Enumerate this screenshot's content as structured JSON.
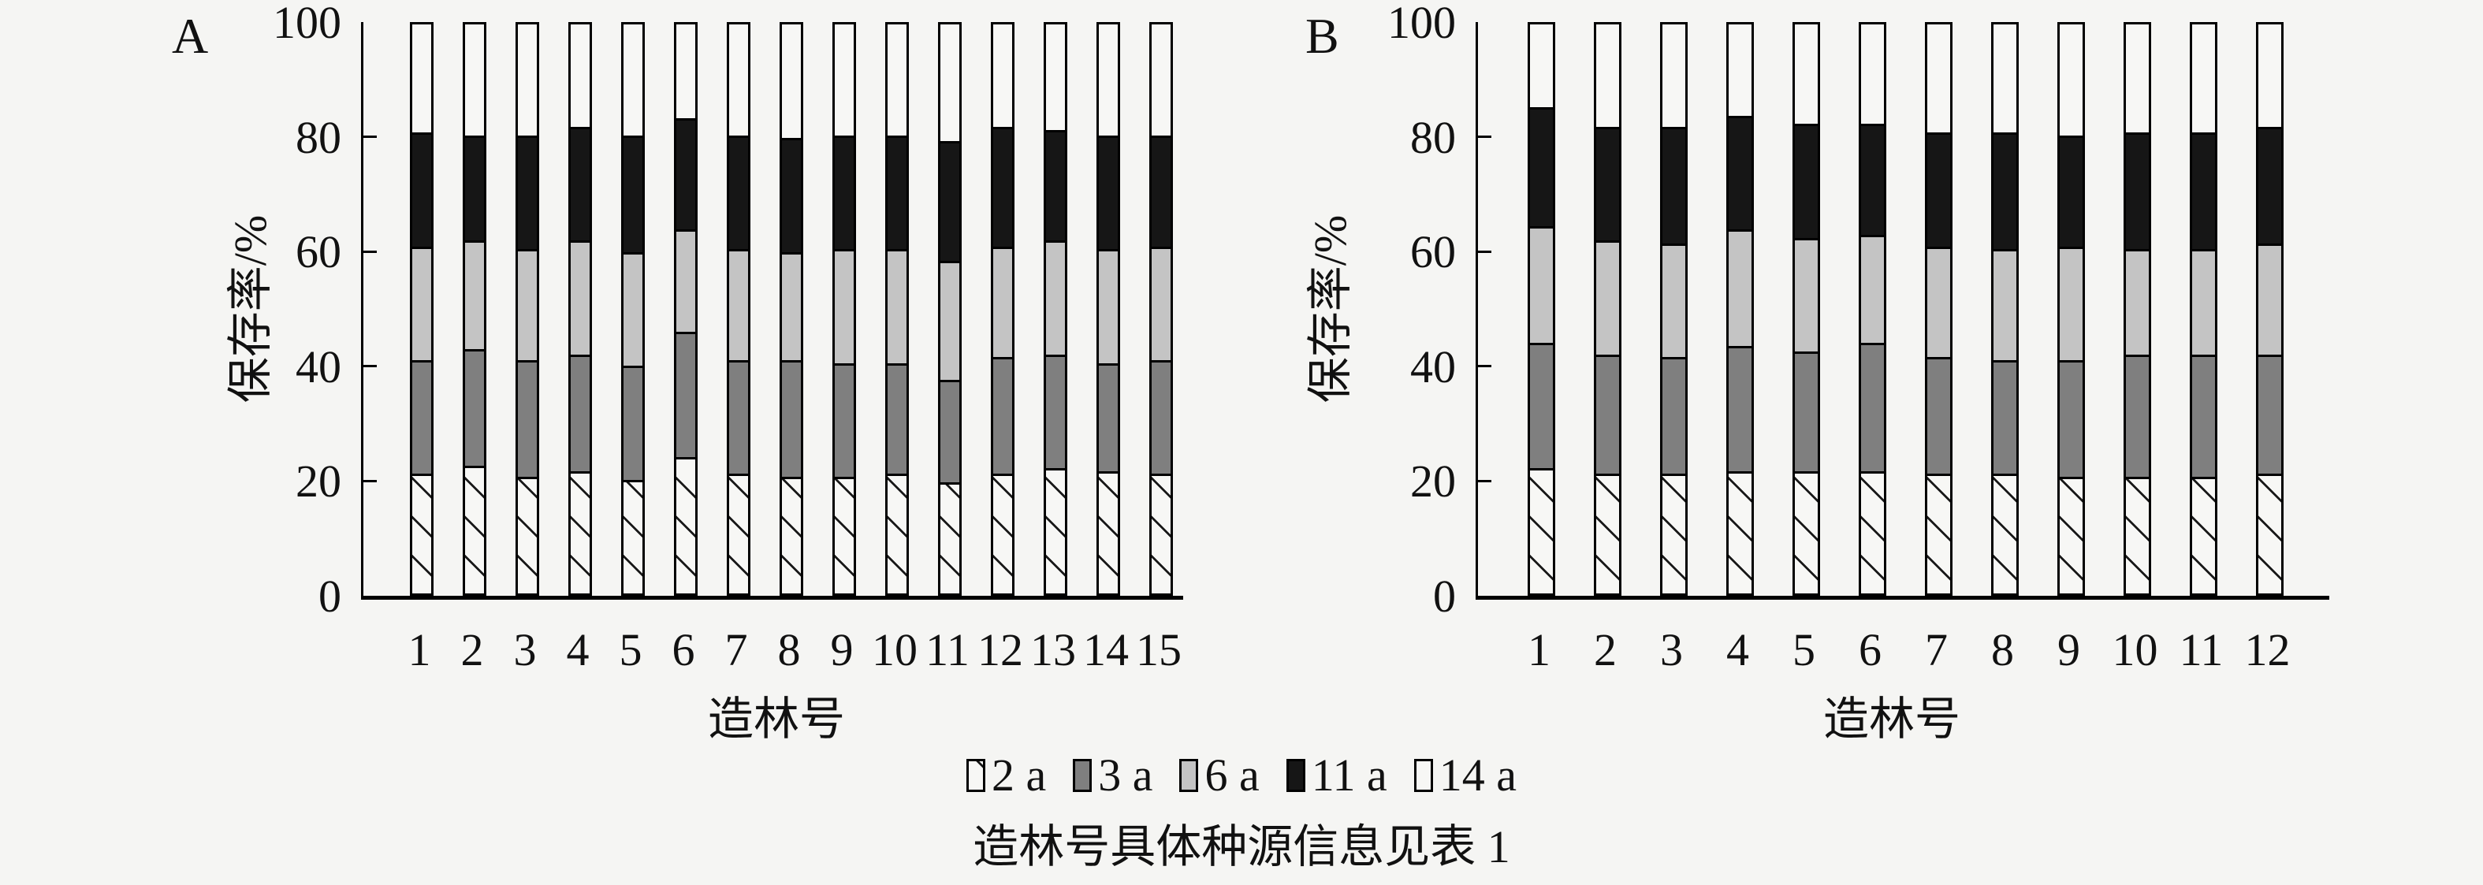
{
  "figure": {
    "background": "#f5f5f3",
    "caption": "造林号具体种源信息见表 1"
  },
  "legend": {
    "items": [
      {
        "label": "2 a",
        "key": "a2",
        "style": "hatch",
        "fill": "#f7f7f5",
        "hatch_color": "#191919"
      },
      {
        "label": "3 a",
        "key": "a3",
        "style": "solid",
        "fill": "#7f7f7f"
      },
      {
        "label": "6 a",
        "key": "a6",
        "style": "solid",
        "fill": "#c4c4c4"
      },
      {
        "label": "11 a",
        "key": "a11",
        "style": "solid",
        "fill": "#161616"
      },
      {
        "label": "14 a",
        "key": "a14",
        "style": "solid",
        "fill": "#f7f7f5"
      }
    ]
  },
  "chart_data": [
    {
      "type": "bar",
      "stacked": true,
      "panel_label": "A",
      "xlabel": "造林号",
      "ylabel": "保存率/%",
      "ylim": [
        0,
        100
      ],
      "yticks": [
        0,
        20,
        40,
        60,
        80,
        100
      ],
      "grid": false,
      "legend_position": "bottom-center-shared",
      "categories": [
        "1",
        "2",
        "3",
        "4",
        "5",
        "6",
        "7",
        "8",
        "9",
        "10",
        "11",
        "12",
        "13",
        "14",
        "15"
      ],
      "series": [
        {
          "name": "2 a",
          "values": [
            21,
            22.5,
            20.5,
            21.5,
            20,
            24,
            21,
            20.5,
            20.5,
            21,
            19.5,
            21,
            22,
            21.5,
            21
          ]
        },
        {
          "name": "3 a",
          "values": [
            20,
            20.5,
            20.5,
            20.5,
            20,
            22,
            20,
            20.5,
            20,
            19.5,
            18,
            20.5,
            20,
            19,
            20
          ]
        },
        {
          "name": "6 a",
          "values": [
            20,
            19,
            19.5,
            20,
            20,
            18,
            19.5,
            19,
            20,
            20,
            21,
            19.5,
            20,
            20,
            20
          ]
        },
        {
          "name": "11 a",
          "values": [
            20,
            18.5,
            20,
            20,
            20.5,
            19.5,
            20,
            20,
            20,
            20,
            21,
            21,
            19.5,
            20,
            19.5
          ]
        },
        {
          "name": "14 a",
          "values": [
            19,
            19.5,
            19.5,
            18,
            19.5,
            16.5,
            19.5,
            20,
            19.5,
            19.5,
            20.5,
            18,
            18.5,
            19.5,
            19.5
          ]
        }
      ]
    },
    {
      "type": "bar",
      "stacked": true,
      "panel_label": "B",
      "xlabel": "造林号",
      "ylabel": "保存率/%",
      "ylim": [
        0,
        100
      ],
      "yticks": [
        0,
        20,
        40,
        60,
        80,
        100
      ],
      "grid": false,
      "legend_position": "bottom-center-shared",
      "categories": [
        "1",
        "2",
        "3",
        "4",
        "5",
        "6",
        "7",
        "8",
        "9",
        "10",
        "11",
        "12"
      ],
      "series": [
        {
          "name": "2 a",
          "values": [
            22,
            21,
            21,
            21.5,
            21.5,
            21.5,
            21,
            21,
            20.5,
            20.5,
            20.5,
            21
          ]
        },
        {
          "name": "3 a",
          "values": [
            22,
            21,
            20.5,
            22,
            21,
            22.5,
            20.5,
            20,
            20.5,
            21.5,
            21.5,
            21
          ]
        },
        {
          "name": "6 a",
          "values": [
            20.5,
            20,
            20,
            20.5,
            20,
            19,
            19.5,
            19.5,
            20,
            18.5,
            18.5,
            19.5
          ]
        },
        {
          "name": "11 a",
          "values": [
            21,
            20,
            20.5,
            20,
            20,
            19.5,
            20,
            20.5,
            19.5,
            20.5,
            20.5,
            20.5
          ]
        },
        {
          "name": "14 a",
          "values": [
            14.5,
            18,
            18,
            16,
            17.5,
            17.5,
            19,
            19,
            19.5,
            19,
            19,
            18
          ]
        }
      ]
    }
  ]
}
